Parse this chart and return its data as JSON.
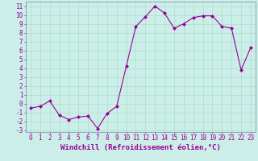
{
  "x": [
    0,
    1,
    2,
    3,
    4,
    5,
    6,
    7,
    8,
    9,
    10,
    11,
    12,
    13,
    14,
    15,
    16,
    17,
    18,
    19,
    20,
    21,
    22,
    23
  ],
  "y": [
    -0.5,
    -0.3,
    0.3,
    -1.3,
    -1.8,
    -1.5,
    -1.4,
    -2.8,
    -1.1,
    -0.3,
    4.2,
    8.7,
    9.8,
    11.0,
    10.2,
    8.5,
    9.0,
    9.7,
    9.9,
    9.9,
    8.7,
    8.5,
    3.8,
    6.3
  ],
  "line_color": "#990099",
  "marker": "D",
  "marker_size": 2,
  "bg_color": "#cceee8",
  "grid_color": "#aaddcc",
  "xlabel": "Windchill (Refroidissement éolien,°C)",
  "xlabel_color": "#990099",
  "xlabel_fontsize": 6.5,
  "tick_color": "#990099",
  "tick_fontsize": 5.5,
  "ylim": [
    -3.2,
    11.5
  ],
  "xlim": [
    -0.5,
    23.5
  ],
  "yticks": [
    -3,
    -2,
    -1,
    0,
    1,
    2,
    3,
    4,
    5,
    6,
    7,
    8,
    9,
    10,
    11
  ],
  "xticks": [
    0,
    1,
    2,
    3,
    4,
    5,
    6,
    7,
    8,
    9,
    10,
    11,
    12,
    13,
    14,
    15,
    16,
    17,
    18,
    19,
    20,
    21,
    22,
    23
  ]
}
